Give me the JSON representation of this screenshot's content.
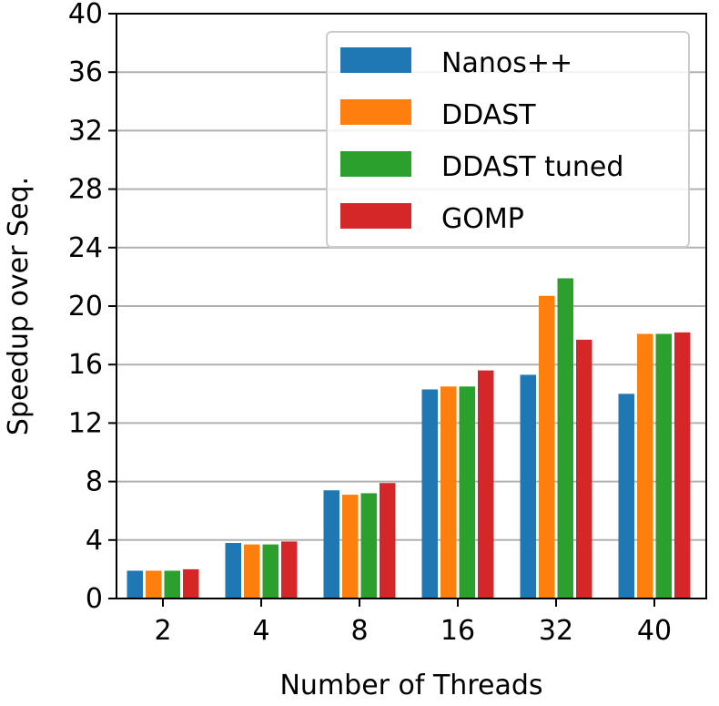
{
  "chart_data": {
    "type": "bar",
    "title": "",
    "xlabel": "Number of Threads",
    "ylabel": "Speedup over Seq.",
    "categories": [
      "2",
      "4",
      "8",
      "16",
      "32",
      "40"
    ],
    "ylim": [
      0,
      40
    ],
    "yticks": [
      0,
      4,
      8,
      12,
      16,
      20,
      24,
      28,
      32,
      36,
      40
    ],
    "grid": "horizontal",
    "legend_position": "top-right",
    "series": [
      {
        "name": "Nanos++",
        "color": "#1f77b4",
        "values": [
          1.9,
          3.8,
          7.4,
          14.3,
          15.3,
          14.0
        ]
      },
      {
        "name": "DDAST",
        "color": "#ff7f0e",
        "values": [
          1.9,
          3.7,
          7.1,
          14.5,
          20.7,
          18.1
        ]
      },
      {
        "name": "DDAST tuned",
        "color": "#2ca02c",
        "values": [
          1.9,
          3.7,
          7.2,
          14.5,
          21.9,
          18.1
        ]
      },
      {
        "name": "GOMP",
        "color": "#d62728",
        "values": [
          2.0,
          3.9,
          7.9,
          15.6,
          17.7,
          18.2
        ]
      }
    ]
  }
}
